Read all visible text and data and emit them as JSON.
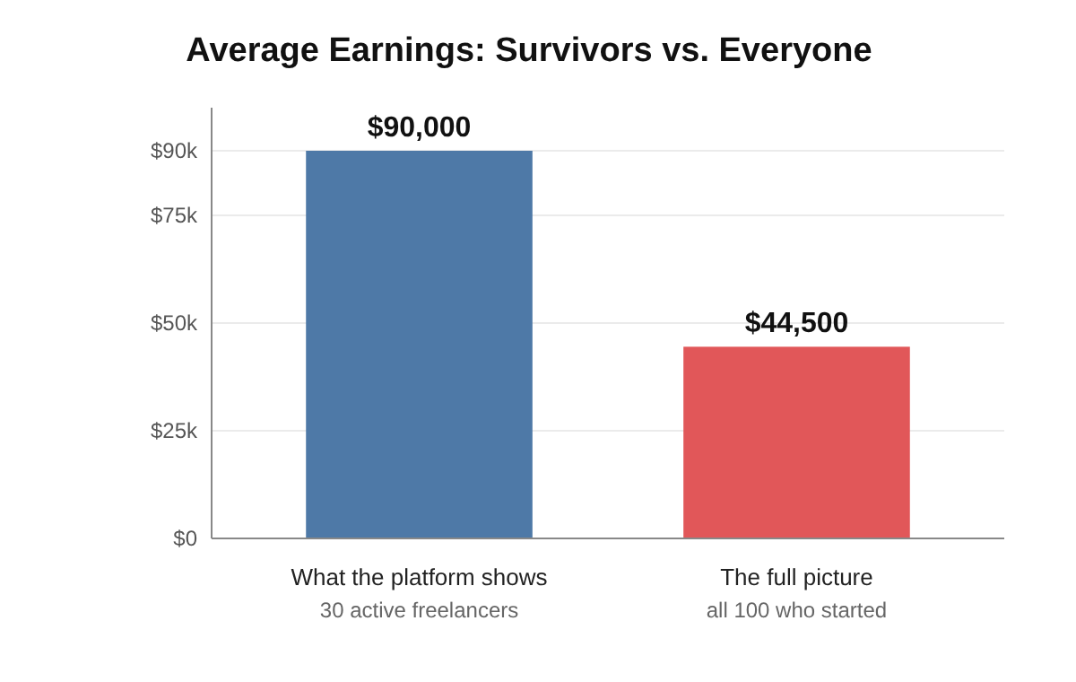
{
  "chart_data": {
    "type": "bar",
    "title": "Average Earnings: Survivors vs. Everyone",
    "categories": [
      "What the platform shows\n30 active freelancers",
      "The full picture\nall 100 who started"
    ],
    "values": [
      90000,
      44500
    ],
    "colors": [
      "#4e79a7",
      "#e15759"
    ],
    "value_labels": [
      "$90,000",
      "$44,500"
    ],
    "ylim": [
      0,
      100000
    ],
    "yticks": [
      {
        "value": 0,
        "label": "$0"
      },
      {
        "value": 25000,
        "label": "$25k"
      },
      {
        "value": 50000,
        "label": "$50k"
      },
      {
        "value": 75000,
        "label": "$75k"
      },
      {
        "value": 90000,
        "label": "$90k"
      }
    ],
    "grid": "y"
  }
}
